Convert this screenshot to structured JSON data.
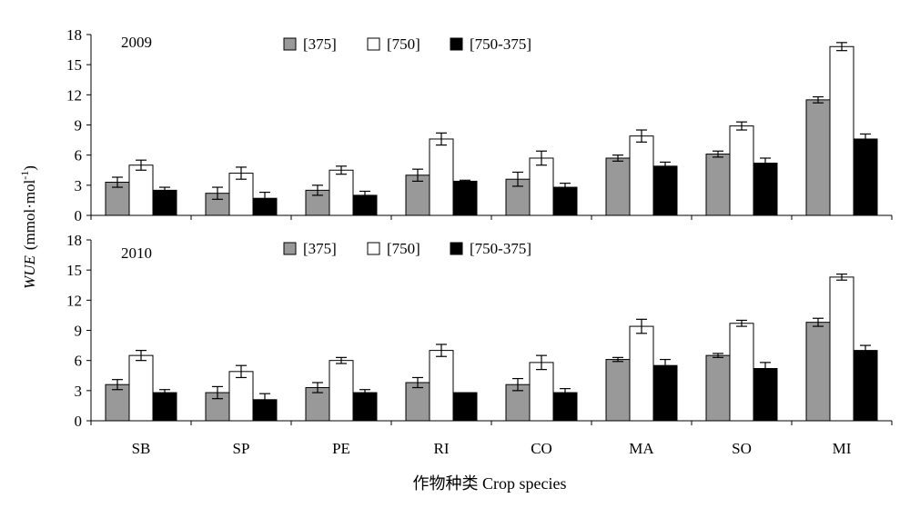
{
  "chart_data": {
    "type": "bar",
    "ylabel_italic": "WUE",
    "ylabel_unit_open": "(mmol·mol",
    "ylabel_unit_sup": "-1",
    "ylabel_unit_close": ")",
    "xlabel": "作物种类 Crop species",
    "categories": [
      "SB",
      "SP",
      "PE",
      "RI",
      "CO",
      "MA",
      "SO",
      "MI"
    ],
    "ylim": [
      0,
      18
    ],
    "yticks": [
      0,
      3,
      6,
      9,
      12,
      15,
      18
    ],
    "legend": [
      "[375]",
      "[750]",
      "[750-375]"
    ],
    "legend_placement": "top",
    "colors": {
      "s375": "#999999",
      "s750": "#ffffff",
      "diff": "#000000"
    },
    "panels": [
      {
        "label": "2009",
        "series": [
          {
            "name": "[375]",
            "values": [
              3.3,
              2.2,
              2.5,
              4.0,
              3.6,
              5.7,
              6.1,
              11.5
            ],
            "errors": [
              0.5,
              0.6,
              0.5,
              0.6,
              0.7,
              0.3,
              0.3,
              0.3
            ]
          },
          {
            "name": "[750]",
            "values": [
              5.0,
              4.2,
              4.5,
              7.6,
              5.7,
              7.9,
              8.9,
              16.8
            ],
            "errors": [
              0.5,
              0.6,
              0.4,
              0.6,
              0.7,
              0.6,
              0.4,
              0.4
            ]
          },
          {
            "name": "[750-375]",
            "values": [
              2.5,
              1.7,
              2.0,
              3.4,
              2.8,
              4.9,
              5.2,
              7.6
            ],
            "errors": [
              0.3,
              0.6,
              0.4,
              0.1,
              0.4,
              0.4,
              0.5,
              0.5
            ]
          }
        ]
      },
      {
        "label": "2010",
        "series": [
          {
            "name": "[375]",
            "values": [
              3.6,
              2.8,
              3.3,
              3.8,
              3.6,
              6.1,
              6.5,
              9.8
            ],
            "errors": [
              0.5,
              0.6,
              0.5,
              0.5,
              0.6,
              0.2,
              0.2,
              0.4
            ]
          },
          {
            "name": "[750]",
            "values": [
              6.5,
              4.9,
              6.0,
              7.0,
              5.8,
              9.4,
              9.7,
              14.3
            ],
            "errors": [
              0.5,
              0.6,
              0.3,
              0.6,
              0.7,
              0.7,
              0.3,
              0.3
            ]
          },
          {
            "name": "[750-375]",
            "values": [
              2.8,
              2.1,
              2.8,
              2.8,
              2.8,
              5.5,
              5.2,
              7.0
            ],
            "errors": [
              0.3,
              0.6,
              0.3,
              0.0,
              0.4,
              0.6,
              0.6,
              0.5
            ]
          }
        ]
      }
    ]
  }
}
